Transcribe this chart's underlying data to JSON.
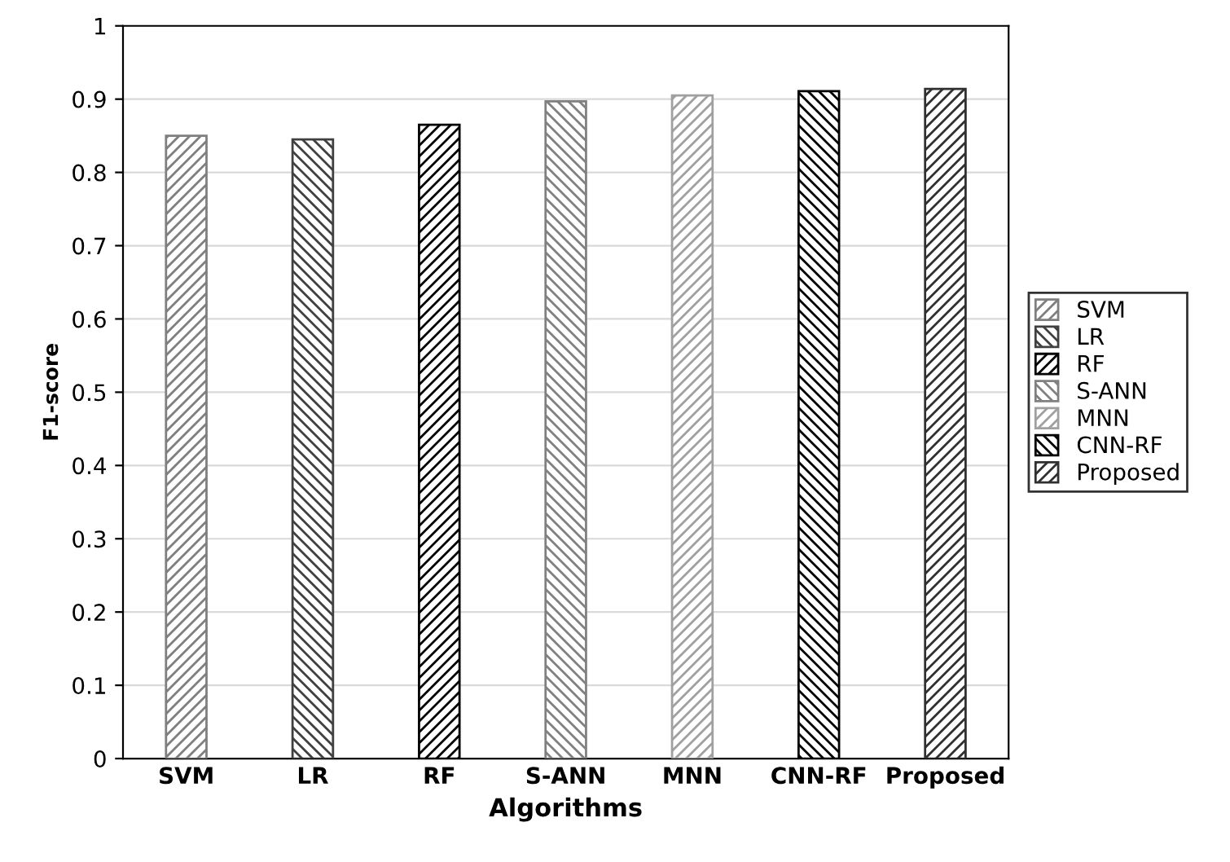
{
  "chart_data": {
    "type": "bar",
    "xlabel": "Algorithms",
    "ylabel": "F1-score",
    "categories": [
      "SVM",
      "LR",
      "RF",
      "S-ANN",
      "MNN",
      "CNN-RF",
      "Proposed"
    ],
    "series": [
      {
        "name": "SVM",
        "color": "#7f7f7f",
        "values": [
          0.85,
          null,
          null,
          null,
          null,
          null,
          null
        ]
      },
      {
        "name": "LR",
        "color": "#404040",
        "values": [
          null,
          0.845,
          null,
          null,
          null,
          null,
          null
        ]
      },
      {
        "name": "RF",
        "color": "#000000",
        "values": [
          null,
          null,
          0.865,
          null,
          null,
          null,
          null
        ]
      },
      {
        "name": "S-ANN",
        "color": "#808080",
        "values": [
          null,
          null,
          null,
          0.897,
          null,
          null,
          null
        ]
      },
      {
        "name": "MNN",
        "color": "#a0a0a0",
        "values": [
          null,
          null,
          null,
          null,
          0.905,
          null,
          null
        ]
      },
      {
        "name": "CNN-RF",
        "color": "#000000",
        "values": [
          null,
          null,
          null,
          null,
          null,
          0.911,
          null
        ]
      },
      {
        "name": "Proposed",
        "color": "#303030",
        "values": [
          null,
          null,
          null,
          null,
          null,
          null,
          0.914
        ]
      }
    ],
    "ylim": [
      0,
      1
    ],
    "yticks": [
      0,
      0.1,
      0.2,
      0.3,
      0.4,
      0.5,
      0.6,
      0.7,
      0.8,
      0.9,
      1
    ],
    "grid": "y",
    "legend": "right"
  }
}
